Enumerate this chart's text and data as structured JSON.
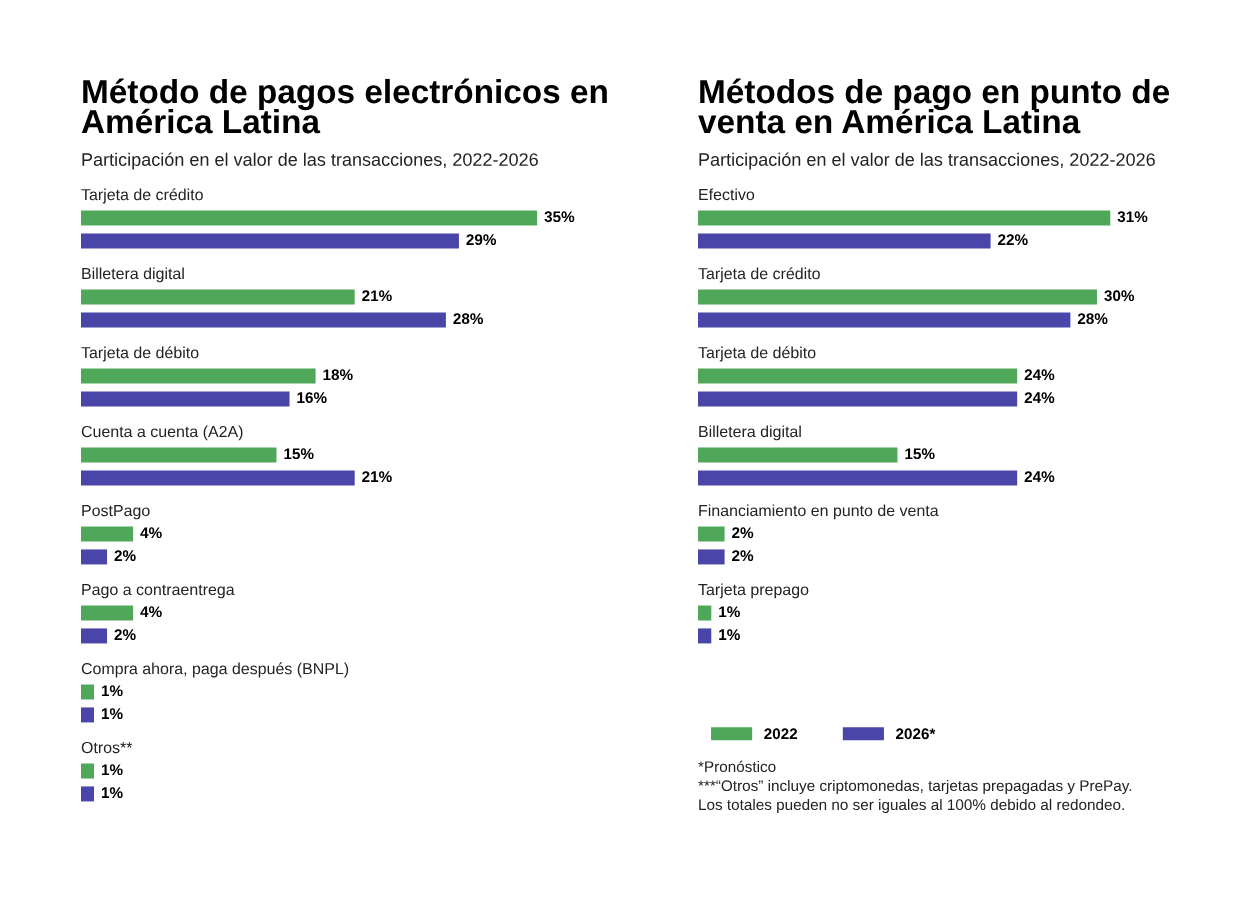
{
  "chart_data": [
    {
      "type": "bar",
      "orientation": "horizontal",
      "title": "Método de pagos electrónicos en\nAmérica Latina",
      "subtitle": "Participación en el valor de las transacciones, 2022-2026",
      "categories": [
        "Tarjeta de crédito",
        "Billetera digital",
        "Tarjeta de débito",
        "Cuenta a cuenta (A2A)",
        "PostPago",
        "Pago a contraentrega",
        "Compra ahora, paga después (BNPL)",
        "Otros**"
      ],
      "series": [
        {
          "color": "#4fa85a",
          "values": [
            35,
            21,
            18,
            15,
            4,
            4,
            1,
            1
          ],
          "value_labels": [
            "35%",
            "21%",
            "18%",
            "15%",
            "4%",
            "4%",
            "1%",
            "1%"
          ]
        },
        {
          "color": "#4a45a8",
          "values": [
            29,
            28,
            16,
            21,
            2,
            2,
            1,
            1
          ],
          "value_labels": [
            "29%",
            "28%",
            "16%",
            "21%",
            "2%",
            "2%",
            "1%",
            "1%"
          ]
        }
      ],
      "tick_labels": "y",
      "legend": false
    },
    {
      "type": "bar",
      "orientation": "horizontal",
      "title": "Métodos de pago en punto de\nventa en América Latina",
      "subtitle": "Participación en el valor de las transacciones, 2022-2026",
      "categories": [
        "Efectivo",
        "Tarjeta de crédito",
        "Tarjeta de débito",
        "Billetera digital",
        "Financiamiento en punto de venta",
        "Tarjeta prepago"
      ],
      "series": [
        {
          "name": "2022",
          "color": "#4fa85a",
          "values": [
            31,
            30,
            24,
            15,
            2,
            1
          ],
          "value_labels": [
            "31%",
            "30%",
            "24%",
            "15%",
            "2%",
            "1%"
          ]
        },
        {
          "name": "2026*",
          "color": "#4a45a8",
          "values": [
            22,
            28,
            24,
            24,
            2,
            1
          ],
          "value_labels": [
            "22%",
            "28%",
            "24%",
            "24%",
            "2%",
            "1%"
          ]
        }
      ],
      "tick_labels": "y",
      "legend": "bottom left",
      "annotations": [
        "*Pronóstico",
        "***“Otros” incluye criptomonedas, tarjetas prepagadas y PrePay.",
        "Los totales pueden no ser iguales al 100% debido al redondeo."
      ]
    }
  ]
}
